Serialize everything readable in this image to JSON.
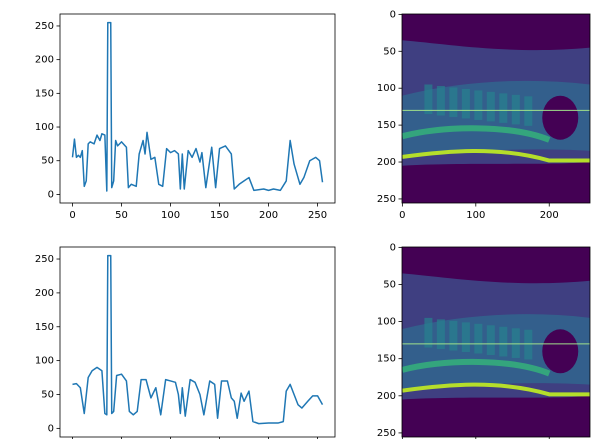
{
  "chart_data": [
    {
      "type": "line",
      "xlim": [
        -12.75,
        267.75
      ],
      "ylim": [
        -12.75,
        267.75
      ],
      "xticks": [
        0,
        50,
        100,
        150,
        200,
        250
      ],
      "yticks": [
        0,
        50,
        100,
        150,
        200,
        250
      ],
      "series": [
        {
          "color": "#1f77b4",
          "x": [
            0,
            2,
            4,
            6,
            8,
            10,
            12,
            14,
            16,
            18,
            22,
            25,
            28,
            30,
            33,
            35,
            36,
            39,
            40,
            42,
            44,
            46,
            50,
            55,
            57,
            60,
            65,
            68,
            72,
            74,
            76,
            80,
            84,
            88,
            92,
            96,
            100,
            104,
            108,
            110,
            112,
            114,
            118,
            122,
            126,
            130,
            132,
            136,
            138,
            142,
            146,
            150,
            156,
            162,
            165,
            170,
            175,
            180,
            185,
            195,
            200,
            205,
            212,
            218,
            222,
            226,
            232,
            236,
            242,
            248,
            252,
            255
          ],
          "values": [
            55,
            82,
            55,
            58,
            55,
            65,
            12,
            20,
            75,
            78,
            75,
            88,
            80,
            90,
            88,
            5,
            255,
            255,
            10,
            20,
            80,
            72,
            78,
            70,
            10,
            15,
            12,
            60,
            80,
            60,
            92,
            52,
            55,
            15,
            12,
            68,
            62,
            65,
            60,
            8,
            60,
            8,
            65,
            55,
            68,
            48,
            62,
            10,
            30,
            70,
            10,
            68,
            72,
            60,
            8,
            15,
            20,
            25,
            6,
            8,
            6,
            8,
            6,
            20,
            80,
            45,
            15,
            25,
            50,
            55,
            50,
            18
          ]
        }
      ]
    },
    {
      "type": "image",
      "xlim": [
        -0.5,
        255.5
      ],
      "ylim": [
        255.5,
        -0.5
      ],
      "xticks": [
        0,
        100,
        200
      ],
      "yticks": [
        0,
        50,
        100,
        150,
        200,
        250
      ],
      "line_y": 130
    },
    {
      "type": "line",
      "xlim": [
        -12.75,
        267.75
      ],
      "ylim": [
        -12.75,
        267.75
      ],
      "xticks": [
        0,
        50,
        100,
        150,
        200,
        250
      ],
      "yticks": [
        0,
        50,
        100,
        150,
        200,
        250
      ],
      "hide_xtick_labels": true,
      "series": [
        {
          "color": "#1f77b4",
          "x": [
            0,
            4,
            8,
            12,
            16,
            20,
            25,
            30,
            33,
            35,
            36,
            39,
            40,
            42,
            45,
            50,
            55,
            58,
            62,
            66,
            70,
            75,
            80,
            85,
            90,
            95,
            100,
            105,
            108,
            110,
            112,
            115,
            120,
            125,
            130,
            134,
            140,
            145,
            148,
            152,
            158,
            162,
            165,
            168,
            172,
            175,
            180,
            184,
            190,
            200,
            210,
            215,
            218,
            222,
            226,
            230,
            234,
            240,
            245,
            250,
            255
          ],
          "values": [
            65,
            66,
            60,
            22,
            75,
            85,
            90,
            85,
            22,
            20,
            255,
            255,
            22,
            25,
            78,
            80,
            70,
            25,
            20,
            25,
            72,
            72,
            45,
            60,
            20,
            72,
            70,
            68,
            50,
            22,
            60,
            18,
            72,
            68,
            50,
            20,
            70,
            65,
            15,
            70,
            70,
            45,
            40,
            15,
            52,
            40,
            55,
            10,
            7,
            8,
            8,
            10,
            55,
            65,
            50,
            35,
            30,
            40,
            48,
            48,
            35
          ]
        }
      ]
    },
    {
      "type": "image",
      "xlim": [
        -0.5,
        255.5
      ],
      "ylim": [
        255.5,
        -0.5
      ],
      "xticks": [
        0,
        100,
        200
      ],
      "yticks": [
        0,
        50,
        100,
        150,
        200,
        250
      ],
      "line_y": 130,
      "hide_xtick_labels": true
    }
  ]
}
